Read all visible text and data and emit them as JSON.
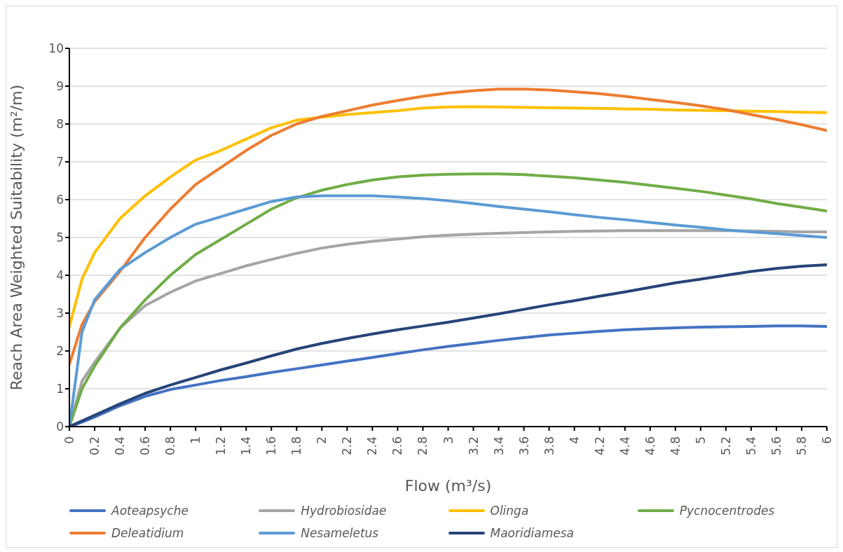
{
  "chart_data": {
    "type": "line",
    "xlabel": "Flow (m³/s)",
    "ylabel": "Reach Area Weighted Suitability (m²/m)",
    "x": [
      0,
      0.1,
      0.2,
      0.4,
      0.6,
      0.8,
      1,
      1.2,
      1.4,
      1.6,
      1.8,
      2,
      2.2,
      2.4,
      2.6,
      2.8,
      3,
      3.2,
      3.4,
      3.6,
      3.8,
      4,
      4.2,
      4.4,
      4.6,
      4.8,
      5,
      5.2,
      5.4,
      5.6,
      5.8,
      6
    ],
    "xlim": [
      0,
      6
    ],
    "xticks": [
      0,
      0.2,
      0.4,
      0.6,
      0.8,
      1,
      1.2,
      1.4,
      1.6,
      1.8,
      2,
      2.2,
      2.4,
      2.6,
      2.8,
      3,
      3.2,
      3.4,
      3.6,
      3.8,
      4,
      4.2,
      4.4,
      4.6,
      4.8,
      5,
      5.2,
      5.4,
      5.6,
      5.8,
      6
    ],
    "ylim": [
      0,
      10
    ],
    "yticks": [
      0,
      1,
      2,
      3,
      4,
      5,
      6,
      7,
      8,
      9,
      10
    ],
    "grid": "y",
    "legend": "bottom",
    "marker": "none",
    "line_style": "solid",
    "series": [
      {
        "name": "Aoteapsyche",
        "color": "#4472c4",
        "values": [
          0,
          0.12,
          0.25,
          0.55,
          0.8,
          0.98,
          1.1,
          1.22,
          1.32,
          1.43,
          1.53,
          1.63,
          1.73,
          1.83,
          1.93,
          2.03,
          2.12,
          2.2,
          2.28,
          2.35,
          2.42,
          2.47,
          2.52,
          2.56,
          2.59,
          2.61,
          2.63,
          2.64,
          2.65,
          2.66,
          2.66,
          2.65
        ]
      },
      {
        "name": "Hydrobiosidae",
        "color": "#a5a5a5",
        "values": [
          0,
          1.2,
          1.7,
          2.6,
          3.2,
          3.55,
          3.85,
          4.05,
          4.25,
          4.42,
          4.58,
          4.72,
          4.82,
          4.9,
          4.96,
          5.02,
          5.06,
          5.09,
          5.11,
          5.13,
          5.15,
          5.16,
          5.17,
          5.18,
          5.18,
          5.18,
          5.18,
          5.18,
          5.17,
          5.16,
          5.15,
          5.15
        ]
      },
      {
        "name": "Olinga",
        "color": "#ffc000",
        "values": [
          2.65,
          3.9,
          4.6,
          5.5,
          6.1,
          6.6,
          7.05,
          7.3,
          7.6,
          7.9,
          8.1,
          8.18,
          8.25,
          8.3,
          8.35,
          8.42,
          8.45,
          8.46,
          8.45,
          8.44,
          8.43,
          8.42,
          8.41,
          8.4,
          8.39,
          8.37,
          8.36,
          8.35,
          8.34,
          8.33,
          8.31,
          8.3
        ]
      },
      {
        "name": "Pycnocentrodes",
        "color": "#70ad47",
        "values": [
          0,
          1.0,
          1.6,
          2.6,
          3.35,
          4.0,
          4.55,
          4.95,
          5.35,
          5.75,
          6.05,
          6.25,
          6.4,
          6.52,
          6.6,
          6.65,
          6.67,
          6.68,
          6.68,
          6.66,
          6.62,
          6.58,
          6.52,
          6.46,
          6.38,
          6.3,
          6.22,
          6.12,
          6.02,
          5.9,
          5.8,
          5.7
        ]
      },
      {
        "name": "Deleatidium",
        "color": "#ed7d31",
        "values": [
          1.65,
          2.7,
          3.3,
          4.1,
          5.0,
          5.75,
          6.4,
          6.85,
          7.3,
          7.7,
          8.0,
          8.2,
          8.35,
          8.5,
          8.62,
          8.73,
          8.82,
          8.88,
          8.92,
          8.92,
          8.9,
          8.85,
          8.8,
          8.73,
          8.65,
          8.57,
          8.48,
          8.38,
          8.25,
          8.12,
          7.98,
          7.83
        ]
      },
      {
        "name": "Nesameletus",
        "color": "#5b9bd5",
        "values": [
          0,
          2.5,
          3.35,
          4.15,
          4.6,
          5.0,
          5.35,
          5.55,
          5.75,
          5.95,
          6.07,
          6.1,
          6.1,
          6.1,
          6.07,
          6.03,
          5.97,
          5.9,
          5.82,
          5.75,
          5.68,
          5.6,
          5.53,
          5.47,
          5.4,
          5.33,
          5.27,
          5.2,
          5.15,
          5.1,
          5.05,
          5.0
        ]
      },
      {
        "name": "Maoridiamesa",
        "color": "#264478",
        "values": [
          0,
          0.15,
          0.3,
          0.6,
          0.88,
          1.1,
          1.3,
          1.5,
          1.68,
          1.87,
          2.05,
          2.2,
          2.33,
          2.45,
          2.56,
          2.66,
          2.76,
          2.87,
          2.98,
          3.1,
          3.22,
          3.33,
          3.45,
          3.56,
          3.68,
          3.8,
          3.9,
          4.0,
          4.1,
          4.18,
          4.24,
          4.28
        ]
      }
    ]
  }
}
